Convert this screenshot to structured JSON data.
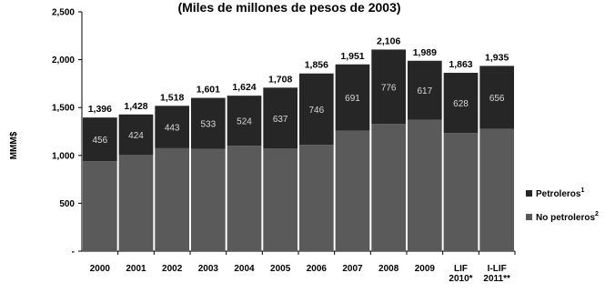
{
  "chart_data": {
    "type": "bar",
    "stacked": true,
    "title": "(Miles de millones de pesos de 2003)",
    "ylabel": "MMM$",
    "ylim": [
      0,
      2500
    ],
    "yticks": [
      "-",
      "500",
      "1,000",
      "1,500",
      "2,000",
      "2,500"
    ],
    "ytick_values": [
      0,
      500,
      1000,
      1500,
      2000,
      2500
    ],
    "categories": [
      [
        "2000"
      ],
      [
        "2001"
      ],
      [
        "2002"
      ],
      [
        "2003"
      ],
      [
        "2004"
      ],
      [
        "2005"
      ],
      [
        "2006"
      ],
      [
        "2007"
      ],
      [
        "2008"
      ],
      [
        "2009"
      ],
      [
        "LIF",
        "2010*"
      ],
      [
        "I-LIF",
        "2011**"
      ]
    ],
    "totals": [
      1396,
      1428,
      1518,
      1601,
      1624,
      1708,
      1856,
      1951,
      2106,
      1989,
      1863,
      1935
    ],
    "total_labels": [
      "1,396",
      "1,428",
      "1,518",
      "1,601",
      "1,624",
      "1,708",
      "1,856",
      "1,951",
      "2,106",
      "1,989",
      "1,863",
      "1,935"
    ],
    "series": [
      {
        "name": "No petroleros",
        "superscript": "2",
        "color": "#5a5a5a",
        "values": [
          940,
          1004,
          1075,
          1068,
          1100,
          1071,
          1110,
          1260,
          1330,
          1372,
          1235,
          1279
        ]
      },
      {
        "name": "Petroleros",
        "superscript": "1",
        "color": "#262626",
        "values": [
          456,
          424,
          443,
          533,
          524,
          637,
          746,
          691,
          776,
          617,
          628,
          656
        ],
        "value_labels": [
          "456",
          "424",
          "443",
          "533",
          "524",
          "637",
          "746",
          "691",
          "776",
          "617",
          "628",
          "656"
        ]
      }
    ],
    "legend": {
      "placement": "right",
      "items": [
        {
          "label": "Petroleros",
          "sup": "1",
          "color": "#262626"
        },
        {
          "label": "No petroleros",
          "sup": "2",
          "color": "#5a5a5a"
        }
      ]
    },
    "grid": false
  }
}
